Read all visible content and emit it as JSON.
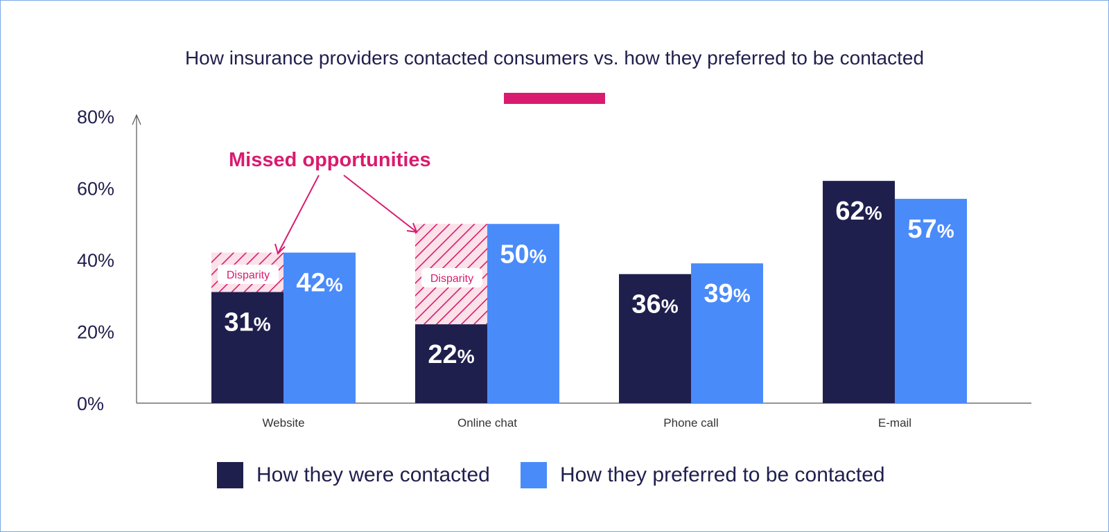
{
  "chart_data": {
    "type": "bar",
    "title": "How insurance providers contacted consumers vs. how they preferred to be contacted",
    "categories": [
      "Website",
      "Online chat",
      "Phone call",
      "E-mail"
    ],
    "series": [
      {
        "name": "How they were contacted",
        "values": [
          31,
          22,
          36,
          62
        ],
        "labels": [
          "31",
          "22",
          "36",
          "62"
        ],
        "color": "#1f1f4e"
      },
      {
        "name": "How they preferred to be contacted",
        "values": [
          42,
          50,
          39,
          57
        ],
        "labels": [
          "42",
          "50",
          "39",
          "57"
        ],
        "color": "#4a8bfa"
      }
    ],
    "percent_sign": "%",
    "ylim": [
      0,
      80
    ],
    "yticks": [
      0,
      20,
      40,
      60,
      80
    ],
    "ytick_labels": [
      "0%",
      "20%",
      "40%",
      "60%",
      "80%"
    ],
    "xlabel": "",
    "ylabel": "",
    "grid": false,
    "legend_position": "bottom",
    "disparity": [
      {
        "category": "Website",
        "from": 31,
        "to": 42,
        "label": "Disparity"
      },
      {
        "category": "Online chat",
        "from": 22,
        "to": 50,
        "label": "Disparity"
      }
    ],
    "annotation": {
      "text": "Missed opportunities",
      "color": "#d91b6f"
    },
    "colors": {
      "accent": "#d91b6f",
      "hatch_bg": "#fbe1e8",
      "axis": "#555555",
      "text": "#1f1f4e"
    }
  }
}
